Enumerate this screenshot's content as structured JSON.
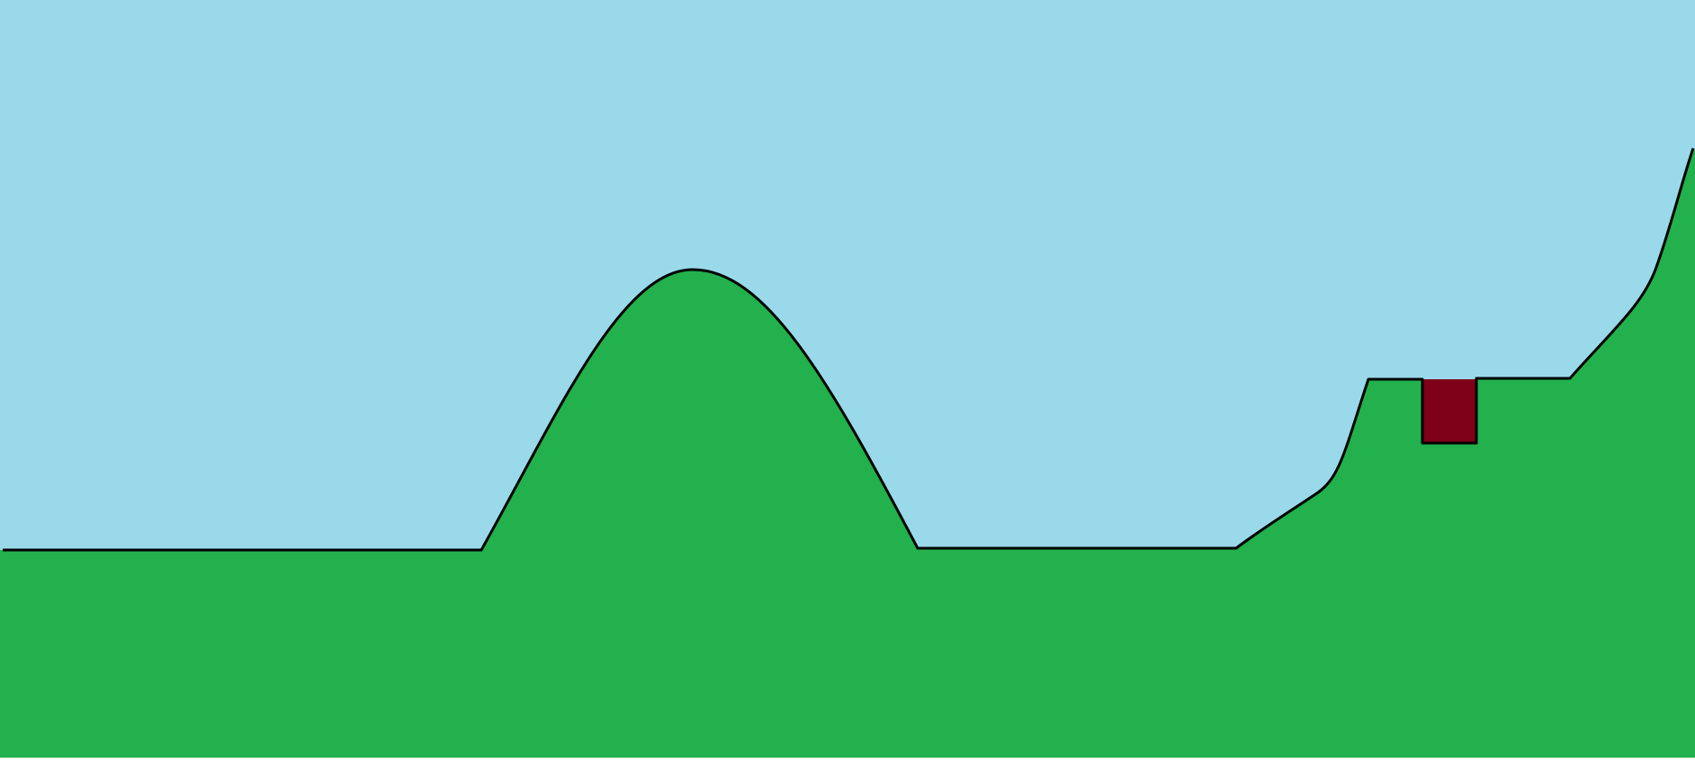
{
  "scene": {
    "colors": {
      "sky": "#9ad9ea",
      "ground": "#22b14c",
      "outline": "#000000",
      "block": "#7f0019",
      "page": "#ffffff"
    }
  }
}
